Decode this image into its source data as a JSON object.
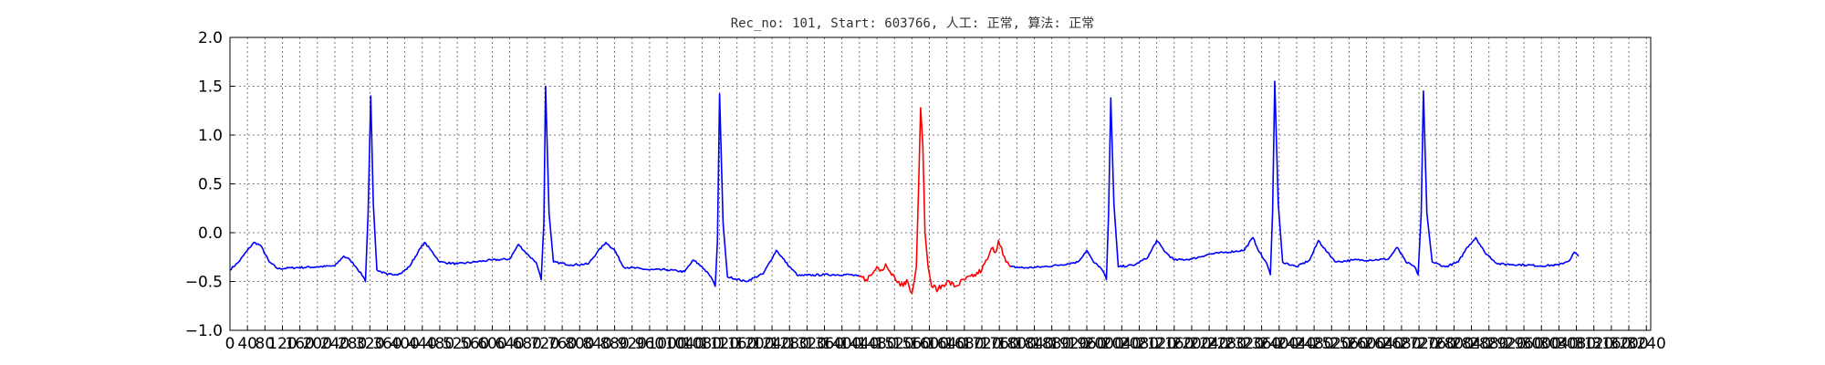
{
  "chart_data": {
    "type": "line",
    "title": "Rec_no: 101, Start: 603766, 人工: 正常, 算法: 正常",
    "xlim": [
      0,
      3250
    ],
    "ylim": [
      -1.0,
      2.0
    ],
    "yticks": [
      "2.0",
      "1.5",
      "1.0",
      "0.5",
      "0.0",
      "−0.5",
      "−1.0"
    ],
    "xtick_labels": [
      "0",
      "40",
      "80",
      "120",
      "160",
      "200",
      "240",
      "280",
      "320",
      "360",
      "400",
      "440",
      "480",
      "520",
      "560",
      "600",
      "640",
      "680",
      "720",
      "760",
      "800",
      "840",
      "880",
      "920",
      "960",
      "1000",
      "1040",
      "1080",
      "1120",
      "1160",
      "1200",
      "1240",
      "1280",
      "1320",
      "1360",
      "1400",
      "1440",
      "1480",
      "1520",
      "1560",
      "1600",
      "1640",
      "1680",
      "1720",
      "1760",
      "1800",
      "1840",
      "1880",
      "1920",
      "1960",
      "2000",
      "2040",
      "2080",
      "2120",
      "2160",
      "2200",
      "2240",
      "2280",
      "2320",
      "2360",
      "2400",
      "2440",
      "2480",
      "2520",
      "2560",
      "2600",
      "2640",
      "2680",
      "2720",
      "2760",
      "2800",
      "2840",
      "2880",
      "2920",
      "2960",
      "3000",
      "3040",
      "3080",
      "3120",
      "3160",
      "3200",
      "3240"
    ],
    "grid": true,
    "series": [
      {
        "color": "#0000ff",
        "points": [
          [
            0,
            -0.38
          ],
          [
            20,
            -0.3
          ],
          [
            40,
            -0.18
          ],
          [
            55,
            -0.1
          ],
          [
            70,
            -0.13
          ],
          [
            90,
            -0.3
          ],
          [
            110,
            -0.37
          ],
          [
            140,
            -0.36
          ],
          [
            200,
            -0.35
          ],
          [
            240,
            -0.34
          ],
          [
            260,
            -0.24
          ],
          [
            275,
            -0.28
          ],
          [
            290,
            -0.36
          ],
          [
            305,
            -0.45
          ],
          [
            310,
            -0.5
          ],
          [
            316,
            0.2
          ],
          [
            322,
            1.4
          ],
          [
            328,
            0.3
          ],
          [
            336,
            -0.38
          ],
          [
            360,
            -0.43
          ],
          [
            390,
            -0.42
          ],
          [
            410,
            -0.35
          ],
          [
            430,
            -0.2
          ],
          [
            445,
            -0.1
          ],
          [
            460,
            -0.18
          ],
          [
            480,
            -0.3
          ],
          [
            520,
            -0.32
          ],
          [
            560,
            -0.3
          ],
          [
            600,
            -0.28
          ],
          [
            640,
            -0.27
          ],
          [
            660,
            -0.12
          ],
          [
            680,
            -0.22
          ],
          [
            700,
            -0.3
          ],
          [
            712,
            -0.48
          ],
          [
            718,
            0.1
          ],
          [
            722,
            1.5
          ],
          [
            730,
            0.2
          ],
          [
            740,
            -0.3
          ],
          [
            780,
            -0.33
          ],
          [
            820,
            -0.32
          ],
          [
            840,
            -0.2
          ],
          [
            860,
            -0.1
          ],
          [
            880,
            -0.18
          ],
          [
            900,
            -0.35
          ],
          [
            960,
            -0.38
          ],
          [
            1000,
            -0.38
          ],
          [
            1040,
            -0.4
          ],
          [
            1060,
            -0.28
          ],
          [
            1080,
            -0.35
          ],
          [
            1100,
            -0.45
          ],
          [
            1110,
            -0.55
          ],
          [
            1115,
            -0.1
          ],
          [
            1120,
            1.42
          ],
          [
            1128,
            0.1
          ],
          [
            1138,
            -0.45
          ],
          [
            1180,
            -0.5
          ],
          [
            1220,
            -0.42
          ],
          [
            1250,
            -0.18
          ],
          [
            1280,
            -0.35
          ],
          [
            1300,
            -0.44
          ],
          [
            1360,
            -0.43
          ],
          [
            1420,
            -0.43
          ],
          [
            1440,
            -0.45
          ]
        ]
      },
      {
        "color": "#ff0000",
        "points": [
          [
            1440,
            -0.45
          ],
          [
            1455,
            -0.48
          ],
          [
            1470,
            -0.42
          ],
          [
            1480,
            -0.35
          ],
          [
            1490,
            -0.38
          ],
          [
            1500,
            -0.32
          ],
          [
            1510,
            -0.4
          ],
          [
            1520,
            -0.45
          ],
          [
            1530,
            -0.5
          ],
          [
            1540,
            -0.55
          ],
          [
            1548,
            -0.48
          ],
          [
            1555,
            -0.58
          ],
          [
            1560,
            -0.62
          ],
          [
            1565,
            -0.5
          ],
          [
            1570,
            -0.35
          ],
          [
            1575,
            0.4
          ],
          [
            1580,
            1.28
          ],
          [
            1585,
            0.9
          ],
          [
            1590,
            0.0
          ],
          [
            1597,
            -0.35
          ],
          [
            1605,
            -0.55
          ],
          [
            1620,
            -0.58
          ],
          [
            1640,
            -0.5
          ],
          [
            1660,
            -0.55
          ],
          [
            1680,
            -0.48
          ],
          [
            1700,
            -0.45
          ],
          [
            1720,
            -0.38
          ],
          [
            1735,
            -0.25
          ],
          [
            1745,
            -0.15
          ],
          [
            1752,
            -0.2
          ],
          [
            1758,
            -0.08
          ],
          [
            1765,
            -0.15
          ],
          [
            1775,
            -0.3
          ],
          [
            1785,
            -0.35
          ]
        ]
      },
      {
        "color": "#0000ff",
        "points": [
          [
            1785,
            -0.35
          ],
          [
            1820,
            -0.36
          ],
          [
            1860,
            -0.35
          ],
          [
            1900,
            -0.33
          ],
          [
            1940,
            -0.3
          ],
          [
            1960,
            -0.18
          ],
          [
            1975,
            -0.3
          ],
          [
            1990,
            -0.35
          ],
          [
            2000,
            -0.42
          ],
          [
            2005,
            -0.48
          ],
          [
            2010,
            0.2
          ],
          [
            2015,
            1.38
          ],
          [
            2022,
            0.3
          ],
          [
            2032,
            -0.35
          ],
          [
            2070,
            -0.33
          ],
          [
            2100,
            -0.25
          ],
          [
            2120,
            -0.08
          ],
          [
            2140,
            -0.2
          ],
          [
            2160,
            -0.28
          ],
          [
            2200,
            -0.27
          ],
          [
            2240,
            -0.22
          ],
          [
            2280,
            -0.2
          ],
          [
            2320,
            -0.18
          ],
          [
            2340,
            -0.05
          ],
          [
            2355,
            -0.2
          ],
          [
            2372,
            -0.32
          ],
          [
            2380,
            -0.43
          ],
          [
            2385,
            0.2
          ],
          [
            2390,
            1.55
          ],
          [
            2398,
            0.3
          ],
          [
            2408,
            -0.3
          ],
          [
            2440,
            -0.35
          ],
          [
            2470,
            -0.28
          ],
          [
            2490,
            -0.08
          ],
          [
            2510,
            -0.2
          ],
          [
            2530,
            -0.3
          ],
          [
            2570,
            -0.28
          ],
          [
            2610,
            -0.28
          ],
          [
            2650,
            -0.27
          ],
          [
            2670,
            -0.15
          ],
          [
            2690,
            -0.3
          ],
          [
            2710,
            -0.35
          ],
          [
            2718,
            -0.43
          ],
          [
            2725,
            0.2
          ],
          [
            2730,
            1.45
          ],
          [
            2738,
            0.2
          ],
          [
            2750,
            -0.3
          ],
          [
            2780,
            -0.35
          ],
          [
            2810,
            -0.3
          ],
          [
            2830,
            -0.15
          ],
          [
            2850,
            -0.05
          ],
          [
            2870,
            -0.2
          ],
          [
            2900,
            -0.32
          ],
          [
            2960,
            -0.33
          ],
          [
            3000,
            -0.34
          ],
          [
            3040,
            -0.33
          ],
          [
            3065,
            -0.28
          ],
          [
            3075,
            -0.2
          ],
          [
            3085,
            -0.24
          ]
        ]
      }
    ]
  }
}
